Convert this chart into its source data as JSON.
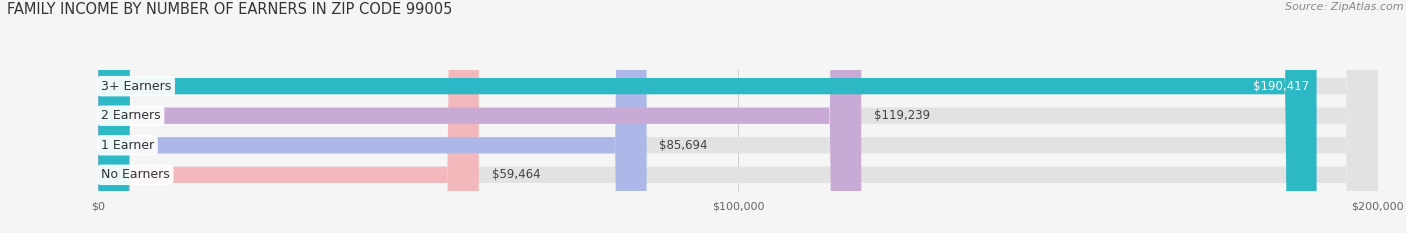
{
  "title": "FAMILY INCOME BY NUMBER OF EARNERS IN ZIP CODE 99005",
  "source": "Source: ZipAtlas.com",
  "categories": [
    "No Earners",
    "1 Earner",
    "2 Earners",
    "3+ Earners"
  ],
  "values": [
    59464,
    85694,
    119239,
    190417
  ],
  "labels": [
    "$59,464",
    "$85,694",
    "$119,239",
    "$190,417"
  ],
  "bar_colors": [
    "#f2b8bc",
    "#adb8e8",
    "#c8aad4",
    "#2db8c5"
  ],
  "label_colors": [
    "#444444",
    "#444444",
    "#444444",
    "#ffffff"
  ],
  "xmax": 200000,
  "xticks": [
    0,
    100000,
    200000
  ],
  "xticklabels": [
    "$0",
    "$100,000",
    "$200,000"
  ],
  "background_color": "#f5f5f5",
  "bar_background_color": "#e2e2e2",
  "title_fontsize": 10.5,
  "source_fontsize": 8,
  "label_fontsize": 8.5,
  "category_fontsize": 9
}
